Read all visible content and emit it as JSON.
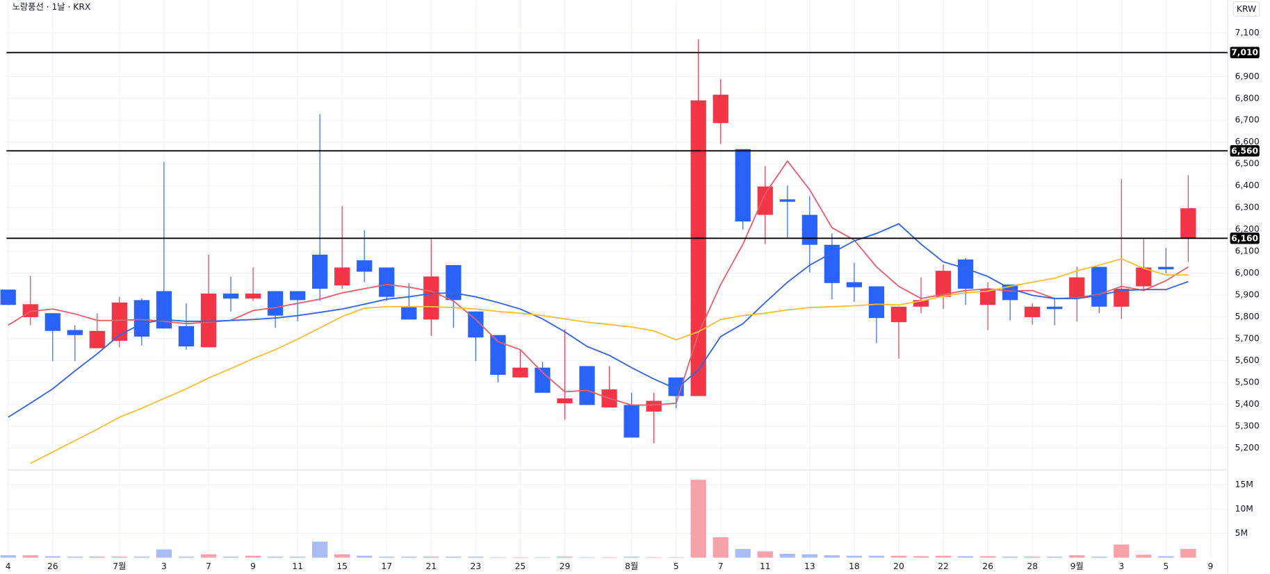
{
  "chart_data": {
    "type": "candlestick",
    "title": "노랑풍선 · 1날 · KRX",
    "currency_button": "KRW",
    "categories": [
      "4",
      null,
      "26",
      null,
      null,
      "7월",
      null,
      "3",
      null,
      "7",
      null,
      "9",
      null,
      "11",
      null,
      "15",
      null,
      "17",
      null,
      "21",
      null,
      "23",
      null,
      "25",
      null,
      "29",
      null,
      null,
      "8월",
      null,
      "5",
      null,
      "7",
      null,
      "11",
      null,
      "13",
      null,
      "18",
      null,
      "20",
      null,
      "22",
      null,
      "26",
      null,
      "28",
      null,
      "9월",
      null,
      "3",
      null,
      "5",
      null,
      "9"
    ],
    "open": [
      5925,
      5799,
      5817,
      5740,
      5657,
      5691,
      5877,
      5918,
      5758,
      5661,
      5907,
      5884,
      5918,
      5918,
      6085,
      5944,
      6059,
      6026,
      5847,
      5788,
      6037,
      5825,
      5717,
      5523,
      5568,
      5405,
      5575,
      5386,
      5397,
      5367,
      5523,
      5438,
      6687,
      6568,
      6267,
      6338,
      6267,
      6130,
      5959,
      5940,
      5776,
      5847,
      5892,
      6063,
      5855,
      5948,
      5799,
      5847,
      5888,
      6029,
      5847,
      5940,
      6029,
      6159,
      null
    ],
    "high": [
      5925,
      5988,
      5817,
      5762,
      5817,
      5892,
      5885,
      6509,
      5862,
      6085,
      5985,
      6026,
      5918,
      5918,
      6728,
      6308,
      6197,
      6026,
      5955,
      6156,
      6037,
      5825,
      5717,
      5650,
      5594,
      5743,
      5575,
      5575,
      5453,
      5453,
      5523,
      7070,
      6888,
      6568,
      6490,
      6401,
      6353,
      6182,
      6048,
      5940,
      5847,
      5981,
      6040,
      6070,
      5959,
      5948,
      5862,
      5884,
      6030,
      6029,
      6431,
      6156,
      6115,
      6449,
      null
    ],
    "low": [
      5855,
      5762,
      5598,
      5598,
      5657,
      5661,
      5669,
      5747,
      5650,
      5661,
      5825,
      5873,
      5750,
      5780,
      5873,
      5929,
      5959,
      5873,
      5788,
      5713,
      5750,
      5598,
      5501,
      5523,
      5453,
      5330,
      5397,
      5386,
      5248,
      5222,
      5382,
      5438,
      6591,
      6200,
      6133,
      6163,
      6003,
      5881,
      5869,
      5680,
      5609,
      5817,
      5836,
      5855,
      5739,
      5784,
      5765,
      5762,
      5780,
      5817,
      5791,
      5929,
      6000,
      6052,
      null
    ],
    "close": [
      5855,
      5858,
      5736,
      5717,
      5736,
      5866,
      5710,
      5747,
      5665,
      5907,
      5884,
      5907,
      5806,
      5877,
      5929,
      6026,
      6007,
      5892,
      5788,
      5985,
      5877,
      5706,
      5535,
      5568,
      5453,
      5427,
      5397,
      5468,
      5248,
      5416,
      5438,
      6791,
      6817,
      6237,
      6397,
      6327,
      6130,
      5955,
      5936,
      5795,
      5847,
      5877,
      6011,
      5929,
      5929,
      5877,
      5847,
      5836,
      5981,
      5847,
      5929,
      6026,
      6018,
      6297,
      null
    ],
    "volume": [
      500000,
      500000,
      300000,
      200000,
      200000,
      200000,
      200000,
      1700000,
      200000,
      700000,
      200000,
      400000,
      200000,
      200000,
      3300000,
      700000,
      400000,
      200000,
      200000,
      200000,
      200000,
      200000,
      100000,
      100000,
      100000,
      200000,
      100000,
      100000,
      200000,
      100000,
      100000,
      16000000,
      4200000,
      1800000,
      1300000,
      800000,
      700000,
      500000,
      400000,
      400000,
      400000,
      300000,
      400000,
      300000,
      300000,
      200000,
      200000,
      200000,
      500000,
      200000,
      2700000,
      600000,
      300000,
      1800000,
      null
    ],
    "up_color": "#f23645",
    "down_color": "#2962ff",
    "volume_up_color": "#f7a1a8",
    "volume_down_color": "#a9bcf8",
    "ma_lines": [
      {
        "color": "#e8606c",
        "values": [
          5762,
          5825,
          5836,
          5814,
          5784,
          5784,
          5788,
          5780,
          5769,
          5776,
          5784,
          5829,
          5843,
          5862,
          5881,
          5910,
          5929,
          5948,
          5936,
          5918,
          5873,
          5788,
          5687,
          5650,
          5546,
          5457,
          5464,
          5427,
          5397,
          5397,
          5405,
          5724,
          5948,
          6133,
          6364,
          6513,
          6382,
          6208,
          6152,
          6029,
          5940,
          5884,
          5903,
          5921,
          5929,
          5918,
          5921,
          5884,
          5888,
          5903,
          5940,
          5921,
          5966,
          6029,
          null
        ]
      },
      {
        "color": "#3366e0",
        "values": [
          5341,
          5405,
          5471,
          5553,
          5631,
          5717,
          5769,
          5788,
          5780,
          5780,
          5784,
          5788,
          5795,
          5806,
          5821,
          5836,
          5858,
          5881,
          5892,
          5907,
          5910,
          5892,
          5866,
          5836,
          5791,
          5732,
          5665,
          5624,
          5568,
          5516,
          5471,
          5557,
          5710,
          5769,
          5866,
          5959,
          6037,
          6093,
          6148,
          6182,
          6226,
          6133,
          6052,
          6022,
          5985,
          5929,
          5899,
          5884,
          5884,
          5899,
          5921,
          5925,
          5925,
          5962,
          null
        ]
      },
      {
        "color": "#f4bf3a",
        "values": [
          null,
          5130,
          5182,
          5234,
          5286,
          5341,
          5382,
          5427,
          5471,
          5520,
          5564,
          5609,
          5650,
          5698,
          5750,
          5802,
          5840,
          5847,
          5847,
          5847,
          5843,
          5836,
          5825,
          5817,
          5806,
          5791,
          5776,
          5765,
          5754,
          5736,
          5695,
          5732,
          5788,
          5806,
          5817,
          5832,
          5843,
          5847,
          5851,
          5858,
          5855,
          5873,
          5895,
          5910,
          5918,
          5940,
          5959,
          5977,
          6011,
          6037,
          6066,
          6022,
          5992,
          5992,
          null
        ]
      }
    ],
    "hlines": [
      {
        "value": 7010,
        "label": "7,010"
      },
      {
        "value": 6560,
        "label": "6,560"
      },
      {
        "value": 6160,
        "label": "6,160"
      }
    ],
    "ylim": [
      5100,
      7250
    ],
    "yticks": [
      {
        "value": 5200,
        "label": "5,200"
      },
      {
        "value": 5300,
        "label": "5,300"
      },
      {
        "value": 5400,
        "label": "5,400"
      },
      {
        "value": 5500,
        "label": "5,500"
      },
      {
        "value": 5600,
        "label": "5,600"
      },
      {
        "value": 5700,
        "label": "5,700"
      },
      {
        "value": 5800,
        "label": "5,800"
      },
      {
        "value": 5900,
        "label": "5,900"
      },
      {
        "value": 6000,
        "label": "6,000"
      },
      {
        "value": 6100,
        "label": "6,100"
      },
      {
        "value": 6200,
        "label": "6,200"
      },
      {
        "value": 6300,
        "label": "6,300"
      },
      {
        "value": 6400,
        "label": "6,400"
      },
      {
        "value": 6500,
        "label": "6,500"
      },
      {
        "value": 6600,
        "label": "6,600"
      },
      {
        "value": 6700,
        "label": "6,700"
      },
      {
        "value": 6800,
        "label": "6,800"
      },
      {
        "value": 6900,
        "label": "6,900"
      },
      {
        "value": 7000,
        "label": "7,000"
      },
      {
        "value": 7100,
        "label": "7,100"
      }
    ],
    "y2lim": [
      0,
      17700000
    ],
    "y2ticks": [
      {
        "value": 5000000,
        "label": "5M"
      },
      {
        "value": 10000000,
        "label": "10M"
      },
      {
        "value": 15000000,
        "label": "15M"
      }
    ],
    "grid": true
  }
}
